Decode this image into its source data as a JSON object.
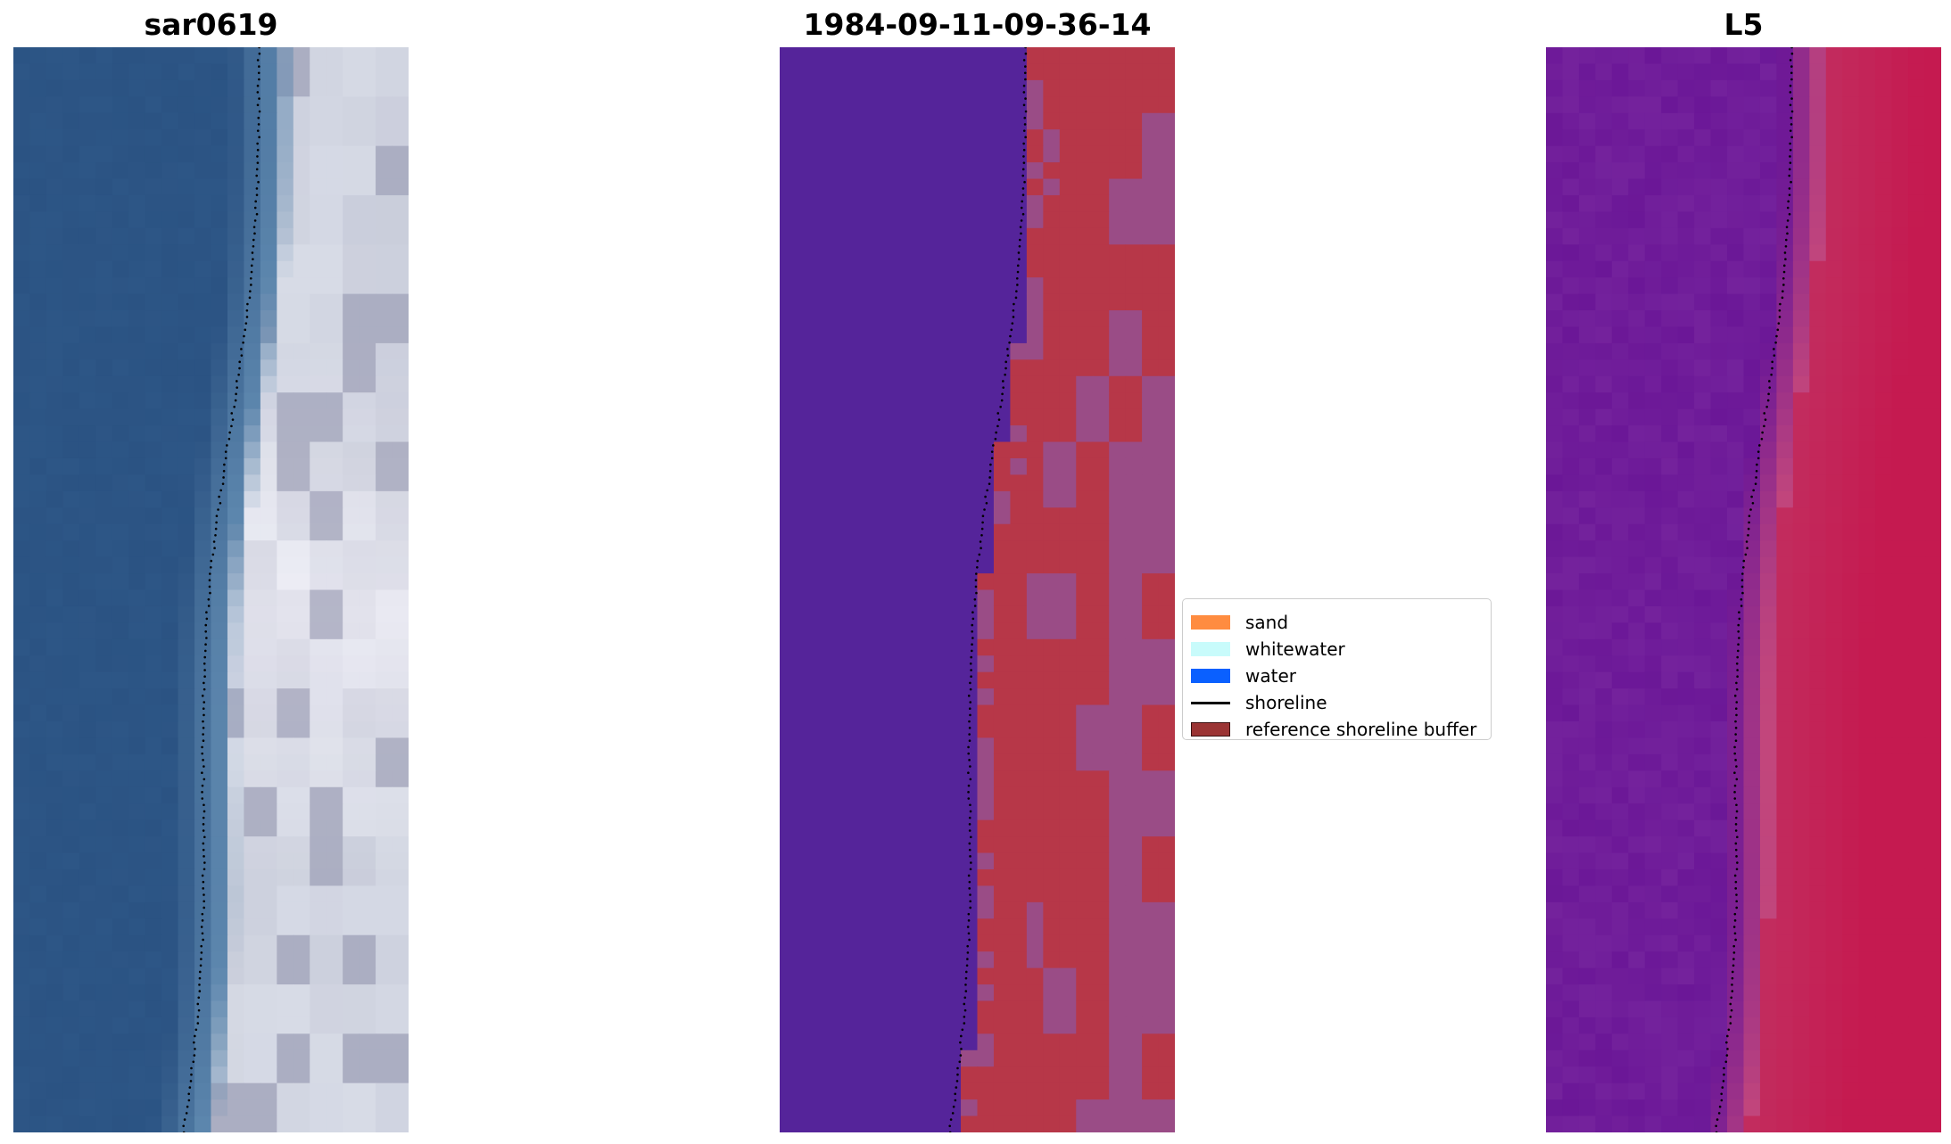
{
  "titles": {
    "left": "sar0619",
    "center": "1984-09-11-09-36-14",
    "right": "L5"
  },
  "legend": {
    "items": [
      {
        "label": "sand",
        "kind": "patch",
        "color": "#ff8c40"
      },
      {
        "label": "whitewater",
        "kind": "patch",
        "color": "#c8fbfb"
      },
      {
        "label": "water",
        "kind": "patch",
        "color": "#0a60ff"
      },
      {
        "label": "shoreline",
        "kind": "line",
        "color": "#000000"
      },
      {
        "label": "reference shoreline buffer",
        "kind": "patch",
        "color": "#9b3434",
        "edge": "#3a1010"
      }
    ]
  },
  "colors": {
    "rgb_water": "#2b5383",
    "rgb_nearshore": "#5c86ad",
    "rgb_surf": "#d7dbe6",
    "rgb_shadow": "#8e90aa",
    "class_water": "#55249a",
    "class_sand": "#b73748",
    "class_buffer": "#9a4c86",
    "index_left": "#6b1797",
    "index_right": "#c51a50",
    "shoreline": "#000000"
  }
}
